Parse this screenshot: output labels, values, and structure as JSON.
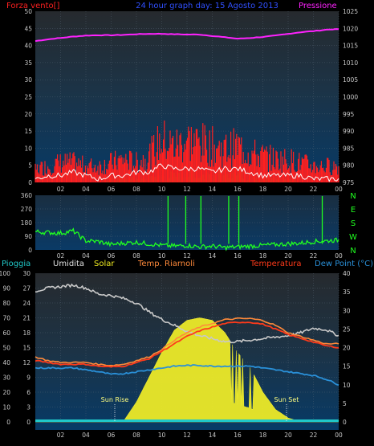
{
  "panel1": {
    "title": "24 hour graph day: 15 Agosto 2013",
    "left_label": "Forza vento[]",
    "right_label": "Pressione",
    "left_ticks": [
      "0",
      "5",
      "10",
      "15",
      "20",
      "25",
      "30",
      "35",
      "40",
      "45",
      "50"
    ],
    "right_ticks": [
      "975",
      "980",
      "985",
      "990",
      "995",
      "1000",
      "1005",
      "1010",
      "1015",
      "1020",
      "1025"
    ],
    "x_ticks": [
      "02",
      "04",
      "06",
      "08",
      "10",
      "12",
      "14",
      "16",
      "18",
      "20",
      "22",
      "00"
    ]
  },
  "panel2": {
    "right_letters": [
      "N",
      "W",
      "S",
      "E",
      "N"
    ],
    "left_ticks": [
      "0",
      "90",
      "180",
      "270",
      "360"
    ],
    "x_ticks": [
      "02",
      "04",
      "06",
      "08",
      "10",
      "12",
      "14",
      "16",
      "18",
      "20",
      "22",
      "00"
    ]
  },
  "panel3": {
    "labels": {
      "rain": "Pioggia",
      "humidity": "Umidita",
      "solar": "Solar",
      "apparent": "Temp. Riarnoli",
      "temperature": "Temperatura",
      "dewpoint": "Dew Point (°C)"
    },
    "left_ticks": [
      "0",
      "10",
      "20",
      "30",
      "40",
      "50",
      "60",
      "70",
      "80",
      "90",
      "100"
    ],
    "mid_ticks": [
      "0",
      "3",
      "6",
      "9",
      "12",
      "15",
      "18",
      "21",
      "24",
      "27",
      "30"
    ],
    "right_ticks": [
      "0",
      "5",
      "10",
      "15",
      "20",
      "25",
      "30",
      "35",
      "40"
    ],
    "x_ticks": [
      "02",
      "04",
      "06",
      "08",
      "10",
      "12",
      "14",
      "16",
      "18",
      "20",
      "22",
      "00"
    ],
    "sunrise_label": "Sun Rise",
    "sunset_label": "Sun Set"
  },
  "chart_data": [
    {
      "type": "line",
      "title": "24 hour graph day: 15 Agosto 2013",
      "x_hours": [
        0,
        1,
        2,
        3,
        4,
        5,
        6,
        7,
        8,
        9,
        10,
        11,
        12,
        13,
        14,
        15,
        16,
        17,
        18,
        19,
        20,
        21,
        22,
        23,
        24
      ],
      "series": [
        {
          "name": "Pressione",
          "axis": "right",
          "ylim": [
            975,
            1025
          ],
          "color": "#ff22ff",
          "values": [
            1016.3,
            1016.8,
            1017.2,
            1017.6,
            1017.9,
            1018.0,
            1018.0,
            1018.1,
            1018.3,
            1018.4,
            1018.4,
            1018.3,
            1018.2,
            1018.2,
            1017.8,
            1017.4,
            1017.0,
            1017.2,
            1017.5,
            1017.9,
            1018.4,
            1018.9,
            1019.2,
            1019.6,
            1019.8
          ]
        },
        {
          "name": "Forza vento",
          "axis": "left",
          "ylim": [
            0,
            50
          ],
          "color": "#ff2020",
          "values": [
            4,
            5,
            6,
            6,
            5,
            5,
            6,
            7,
            6,
            8,
            13,
            11,
            13,
            12,
            11,
            10,
            11,
            9,
            8,
            7,
            7,
            6,
            5,
            5,
            5
          ]
        },
        {
          "axis": "left",
          "color": "#ffffff",
          "values": [
            1,
            2,
            2,
            3,
            2,
            1,
            2,
            2,
            3,
            3,
            5,
            4,
            4,
            4,
            3,
            4,
            4,
            3,
            2,
            2,
            2,
            2,
            1,
            1,
            1
          ]
        },
        {
          "axis": "left",
          "color": "#20c020",
          "values": [
            0,
            0,
            0,
            0,
            0,
            0,
            1,
            1,
            1,
            1,
            2,
            2,
            2,
            2,
            2,
            2,
            2,
            1,
            1,
            1,
            1,
            0,
            0,
            0,
            0
          ]
        }
      ],
      "x_tick_labels": [
        "02",
        "04",
        "06",
        "08",
        "10",
        "12",
        "14",
        "16",
        "18",
        "20",
        "22",
        "00"
      ],
      "left_axis_range": [
        0,
        50
      ],
      "right_axis_range": [
        975,
        1025
      ],
      "grid": true
    },
    {
      "type": "line",
      "x_hours": [
        0,
        1,
        2,
        3,
        4,
        5,
        6,
        7,
        8,
        9,
        10,
        11,
        12,
        13,
        14,
        15,
        16,
        17,
        18,
        19,
        20,
        21,
        22,
        23,
        24
      ],
      "series": [
        {
          "color": "#20ff20",
          "ylim": [
            0,
            360
          ],
          "values": [
            120,
            115,
            110,
            125,
            60,
            55,
            35,
            45,
            50,
            40,
            30,
            25,
            30,
            20,
            25,
            15,
            20,
            25,
            30,
            35,
            40,
            45,
            55,
            60,
            65
          ]
        }
      ],
      "x_tick_labels": [
        "02",
        "04",
        "06",
        "08",
        "10",
        "12",
        "14",
        "16",
        "18",
        "20",
        "22",
        "00"
      ],
      "axis_range": [
        0,
        360
      ],
      "grid": true
    },
    {
      "type": "line",
      "x_hours": [
        0,
        1,
        2,
        3,
        4,
        5,
        6,
        7,
        8,
        9,
        10,
        11,
        12,
        13,
        14,
        15,
        16,
        17,
        18,
        19,
        20,
        21,
        22,
        23,
        24
      ],
      "series": [
        {
          "name": "Umidita",
          "axis": "left",
          "ylim": [
            0,
            100
          ],
          "color": "#c8c8c8",
          "values": [
            88,
            90,
            91,
            92,
            90,
            86,
            85,
            83,
            80,
            74,
            69,
            65,
            61,
            58,
            56,
            54,
            54,
            55,
            56,
            57,
            58,
            60,
            63,
            62,
            58
          ]
        },
        {
          "name": "Temperatura",
          "axis": "right",
          "ylim": [
            0,
            40
          ],
          "color": "#ff3a1a",
          "values": [
            16.5,
            16,
            15.5,
            15.5,
            15.5,
            15,
            14.8,
            15,
            16,
            17,
            19,
            21,
            23,
            24.5,
            25.5,
            26.5,
            26.8,
            26.8,
            26.3,
            25,
            23.5,
            22.5,
            21.5,
            20.5,
            20
          ]
        },
        {
          "name": "Temp. Riarnoli",
          "axis": "right",
          "ylim": [
            0,
            40
          ],
          "color": "#ff8a3a",
          "values": [
            17.5,
            16.5,
            16,
            16,
            16,
            15.5,
            15.2,
            15.5,
            16.5,
            17.5,
            19.5,
            22,
            24,
            25.5,
            26.5,
            27.5,
            27.8,
            27.8,
            27.3,
            26,
            24,
            23,
            22,
            21,
            21
          ]
        },
        {
          "name": "Dew Point (°C)",
          "axis": "right",
          "ylim": [
            0,
            40
          ],
          "color": "#2a90d8",
          "values": [
            14.5,
            14.5,
            14.5,
            14.5,
            14,
            13.5,
            12.8,
            13,
            13.5,
            14,
            14.5,
            15,
            15.2,
            15.2,
            15,
            15,
            15,
            15,
            14.5,
            14,
            13.5,
            13,
            12.5,
            11.5,
            10
          ]
        },
        {
          "name": "Solar",
          "axis": "mid",
          "ylim": [
            0,
            30
          ],
          "color": "#f0ec20",
          "values": [
            0,
            0,
            0,
            0,
            0,
            0,
            0,
            0.2,
            4,
            9,
            14,
            18.5,
            20.5,
            21,
            20.5,
            18,
            14,
            11,
            6,
            2.5,
            0.8,
            0,
            0,
            0,
            0
          ]
        },
        {
          "name": "Pioggia",
          "axis": "left",
          "ylim": [
            0,
            100
          ],
          "color": "#20c8c8",
          "values": [
            0,
            0,
            0,
            0,
            0,
            0,
            0,
            0,
            0,
            0,
            0,
            0,
            0,
            0,
            0,
            0,
            0,
            0,
            0,
            0,
            0,
            0,
            0,
            0,
            0
          ]
        }
      ],
      "annotations": [
        "Sun Rise",
        "Sun Set"
      ],
      "x_tick_labels": [
        "02",
        "04",
        "06",
        "08",
        "10",
        "12",
        "14",
        "16",
        "18",
        "20",
        "22",
        "00"
      ],
      "left_axis_range": [
        0,
        100
      ],
      "mid_axis_range": [
        0,
        30
      ],
      "right_axis_range": [
        0,
        40
      ],
      "grid": true
    }
  ]
}
